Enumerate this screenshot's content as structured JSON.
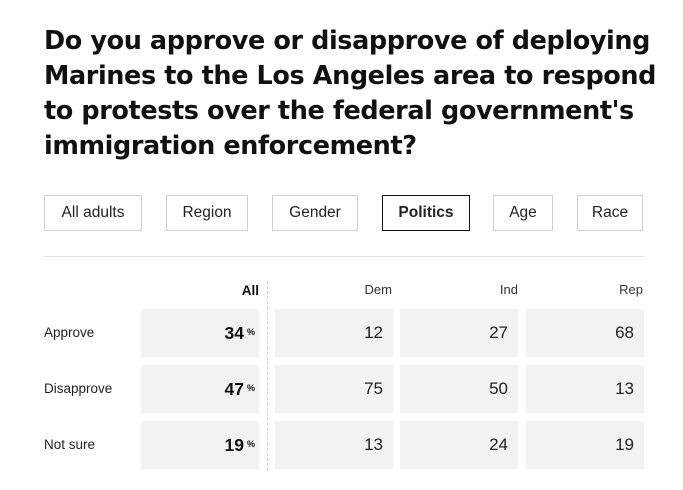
{
  "question": "Do you approve or disapprove of deploying Marines to the Los Angeles area to respond to protests over the federal government's immigration enforcement?",
  "filters": [
    {
      "label": "All adults",
      "active": false
    },
    {
      "label": "Region",
      "active": false
    },
    {
      "label": "Gender",
      "active": false
    },
    {
      "label": "Politics",
      "active": true
    },
    {
      "label": "Age",
      "active": false
    },
    {
      "label": "Race",
      "active": false
    }
  ],
  "table": {
    "columns": [
      "All",
      "Dem",
      "Ind",
      "Rep"
    ],
    "percent_symbol": "%",
    "rows": [
      {
        "label": "Approve",
        "all": "34",
        "values": [
          "12",
          "27",
          "68"
        ]
      },
      {
        "label": "Disapprove",
        "all": "47",
        "values": [
          "75",
          "50",
          "13"
        ]
      },
      {
        "label": "Not sure",
        "all": "19",
        "values": [
          "13",
          "24",
          "19"
        ]
      }
    ]
  }
}
